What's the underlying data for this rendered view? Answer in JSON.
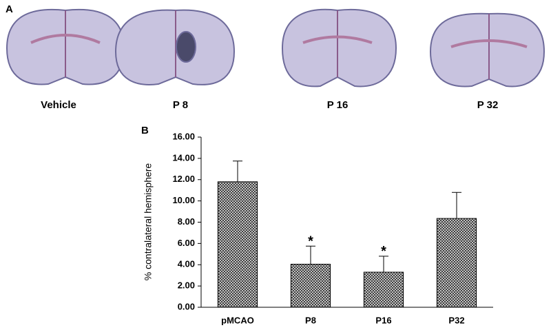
{
  "panels": {
    "a": {
      "label": "A",
      "images": [
        "Vehicle",
        "P 8",
        "P 16",
        "P 32"
      ]
    },
    "b": {
      "label": "B"
    }
  },
  "chart_data": {
    "type": "bar",
    "ylabel": "% contralateral hemisphere",
    "categories": [
      "pMCAO",
      "P8",
      "P16",
      "P32"
    ],
    "values": [
      11.8,
      4.05,
      3.3,
      8.35
    ],
    "errors": [
      1.95,
      1.7,
      1.5,
      2.45
    ],
    "significance": [
      null,
      "*",
      "*",
      null
    ],
    "color": "#333333",
    "ylim": [
      0,
      16
    ],
    "yticks": [
      {
        "value": 0,
        "label": "0.00"
      },
      {
        "value": 2,
        "label": "2.00"
      },
      {
        "value": 4,
        "label": "4.00"
      },
      {
        "value": 6,
        "label": "6.00"
      },
      {
        "value": 8,
        "label": "8.00"
      },
      {
        "value": 10,
        "label": "10.00"
      },
      {
        "value": 12,
        "label": "12.00"
      },
      {
        "value": 14,
        "label": "14.00"
      },
      {
        "value": 16,
        "label": "16.00"
      }
    ]
  }
}
